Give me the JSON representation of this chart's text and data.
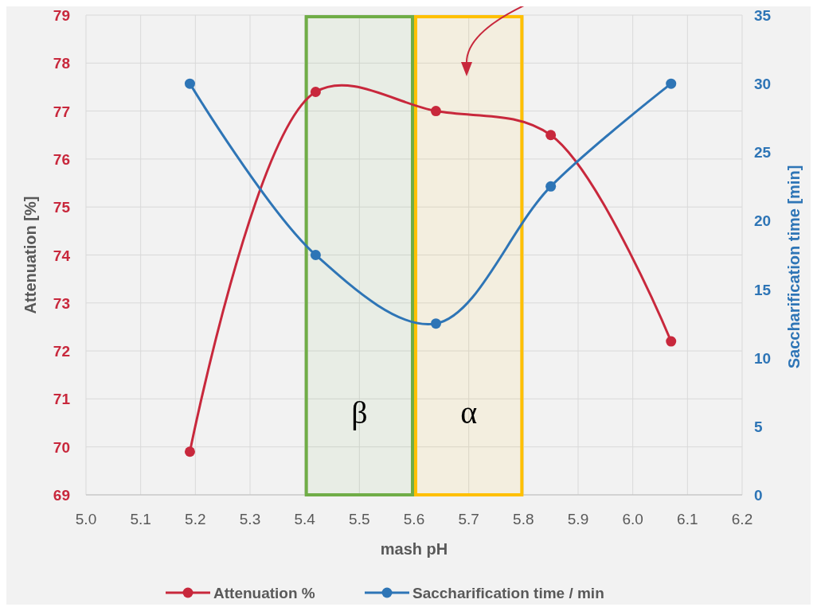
{
  "chart_data": {
    "type": "line",
    "xlabel": "mash pH",
    "ylabel": "Attenuation [%]",
    "y2label": "Saccharification time [min]",
    "x": [
      5.19,
      5.42,
      5.64,
      5.85,
      6.07
    ],
    "series": [
      {
        "name": "Attenuation %",
        "color": "#c8283c",
        "values": [
          69.9,
          77.4,
          77.0,
          76.5,
          72.2
        ]
      },
      {
        "name": "Saccharification time / min",
        "color": "#2e75b6",
        "axis": "y2",
        "values": [
          30,
          17.5,
          12.5,
          22.5,
          30
        ]
      }
    ],
    "xlim": [
      5.0,
      6.2
    ],
    "xticks": [
      {
        "value": 5.0,
        "label": "5.0"
      },
      5.1,
      5.2,
      5.3,
      5.4,
      5.5,
      5.6,
      5.7,
      5.8,
      5.9,
      {
        "value": 6.0,
        "label": "6.0"
      },
      6.1,
      6.2
    ],
    "ylim": [
      69,
      79
    ],
    "yticks": [
      69,
      70,
      71,
      72,
      73,
      74,
      75,
      76,
      77,
      78,
      79
    ],
    "y2lim": [
      0,
      35
    ],
    "y2ticks": [
      0,
      5,
      10,
      15,
      20,
      25,
      30,
      35
    ],
    "bands": [
      {
        "axis": "x",
        "from": 5.4,
        "to": 5.6,
        "label": "β",
        "color": "#70ad47"
      },
      {
        "axis": "x",
        "from": 5.6,
        "to": 5.8,
        "label": "α",
        "color": "#ffc000"
      }
    ],
    "grid": true,
    "legend": "bottom",
    "marker": "circle",
    "line_style": "solid"
  }
}
